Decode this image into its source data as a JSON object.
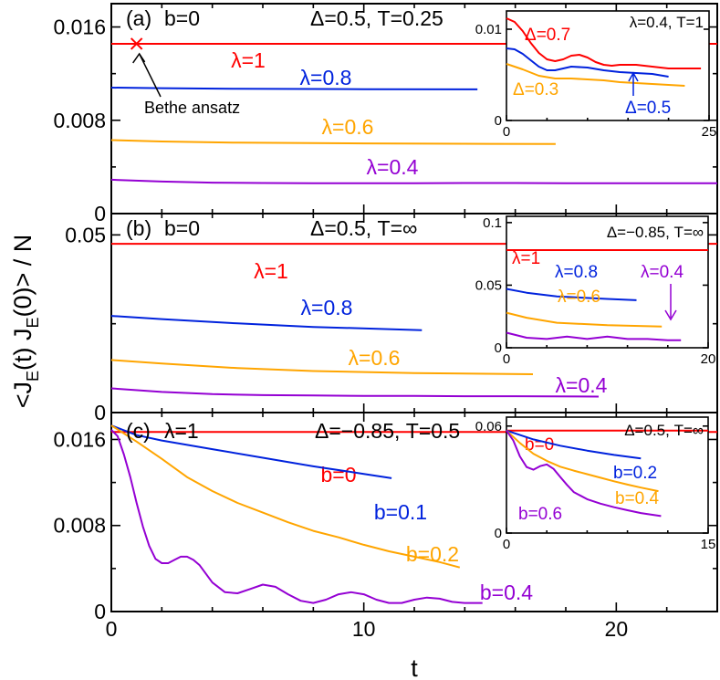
{
  "chart_data": {
    "type": "line",
    "xlabel": "t",
    "ylabel": "<J_E(t) J_E(0)> / N",
    "ylabel_parts": [
      "<J",
      "E",
      "(t) J",
      "E",
      "(0)> / N"
    ],
    "xlim": [
      0,
      24
    ],
    "xticks": [
      0,
      10,
      20
    ],
    "colors": {
      "red": "#ff0000",
      "blue": "#0022dd",
      "orange": "#ffa500",
      "purple": "#9400d3",
      "black": "#000000"
    },
    "panels": [
      {
        "id": "a",
        "tag": "(a)",
        "param": "b=0",
        "title": "Δ=0.5, T=0.25",
        "ylim": [
          0,
          0.018
        ],
        "yticks": [
          0,
          0.008,
          0.016
        ],
        "ytick_labels": [
          "0",
          "0.008",
          "0.016"
        ],
        "annotation": {
          "text": "Bethe ansatz",
          "marker_x": 1.0,
          "marker_y": 0.01456
        },
        "series": [
          {
            "name": "λ=1",
            "color": "red",
            "x": [
              0,
              24
            ],
            "y": [
              0.01456,
              0.01456
            ]
          },
          {
            "name": "λ=0.8",
            "color": "blue",
            "x": [
              0,
              2,
              5,
              10,
              14.5
            ],
            "y": [
              0.0108,
              0.01075,
              0.0107,
              0.01067,
              0.01065
            ]
          },
          {
            "name": "λ=0.6",
            "color": "orange",
            "x": [
              0,
              2,
              5,
              10,
              15,
              17.6
            ],
            "y": [
              0.0063,
              0.00618,
              0.00608,
              0.00602,
              0.00598,
              0.00597
            ]
          },
          {
            "name": "λ=0.4",
            "color": "purple",
            "x": [
              0,
              2,
              4,
              6,
              8,
              10,
              12,
              14,
              16,
              18,
              20,
              22,
              24
            ],
            "y": [
              0.0029,
              0.00275,
              0.00265,
              0.00262,
              0.0026,
              0.0026,
              0.0026,
              0.00262,
              0.00262,
              0.0026,
              0.0026,
              0.00261,
              0.0026
            ]
          }
        ],
        "inset": {
          "title": "λ=0.4, T=1",
          "xlim": [
            0,
            25
          ],
          "ylim": [
            0,
            0.012
          ],
          "xticks": [
            0,
            25
          ],
          "yticks": [
            0,
            0.01
          ],
          "ytick_labels": [
            "0",
            "0.01"
          ],
          "series": [
            {
              "name": "Δ=0.7",
              "color": "red",
              "x": [
                0,
                1,
                2,
                3,
                4,
                5,
                6,
                7,
                8,
                9,
                10,
                11,
                12,
                13,
                14,
                16,
                18,
                20,
                22,
                24
              ],
              "y": [
                0.0112,
                0.0108,
                0.0098,
                0.0085,
                0.0074,
                0.0067,
                0.0065,
                0.0067,
                0.0071,
                0.0072,
                0.0069,
                0.0064,
                0.0061,
                0.006,
                0.0061,
                0.0061,
                0.0059,
                0.0057,
                0.0057,
                0.0057
              ]
            },
            {
              "name": "Δ=0.5",
              "color": "blue",
              "x": [
                0,
                1,
                2,
                3,
                4,
                5,
                6,
                7,
                8,
                10,
                12,
                14,
                16,
                18,
                20
              ],
              "y": [
                0.0079,
                0.0078,
                0.0073,
                0.0066,
                0.0059,
                0.0055,
                0.0055,
                0.0057,
                0.0059,
                0.0058,
                0.0055,
                0.0053,
                0.0052,
                0.0051,
                0.0048
              ]
            },
            {
              "name": "Δ=0.3",
              "color": "orange",
              "x": [
                0,
                2,
                4,
                6,
                8,
                10,
                12,
                14,
                16,
                18,
                20,
                22
              ],
              "y": [
                0.0062,
                0.0056,
                0.0049,
                0.0046,
                0.0046,
                0.0045,
                0.0044,
                0.0042,
                0.0041,
                0.004,
                0.0039,
                0.0038
              ]
            }
          ]
        }
      },
      {
        "id": "b",
        "tag": "(b)",
        "param": "b=0",
        "title": "Δ=0.5, T=∞",
        "ylim": [
          0,
          0.056
        ],
        "yticks": [
          0,
          0.05
        ],
        "ytick_labels": [
          "0",
          "0.05"
        ],
        "series": [
          {
            "name": "λ=1",
            "color": "red",
            "x": [
              0,
              24
            ],
            "y": [
              0.0475,
              0.0475
            ]
          },
          {
            "name": "λ=0.8",
            "color": "blue",
            "x": [
              0,
              2,
              5,
              8,
              12.3
            ],
            "y": [
              0.0272,
              0.0263,
              0.0251,
              0.0241,
              0.0232
            ]
          },
          {
            "name": "λ=0.6",
            "color": "orange",
            "x": [
              0,
              2,
              5,
              8,
              12,
              16.7
            ],
            "y": [
              0.0148,
              0.0138,
              0.0125,
              0.0117,
              0.0111,
              0.0108
            ]
          },
          {
            "name": "λ=0.4",
            "color": "purple",
            "x": [
              0,
              2,
              4,
              6,
              8,
              10,
              12,
              14,
              16,
              19.3
            ],
            "y": [
              0.0068,
              0.0058,
              0.0052,
              0.0049,
              0.0048,
              0.0047,
              0.0047,
              0.0046,
              0.0046,
              0.0045
            ]
          }
        ],
        "inset": {
          "title": "Δ=−0.85, T=∞",
          "xlim": [
            0,
            20
          ],
          "ylim": [
            0,
            0.105
          ],
          "xticks": [
            0,
            20
          ],
          "yticks": [
            0,
            0.05,
            0.1
          ],
          "ytick_labels": [
            "0",
            "0.05",
            "0.1"
          ],
          "series": [
            {
              "name": "λ=1",
              "color": "red",
              "x": [
                0,
                20
              ],
              "y": [
                0.078,
                0.078
              ]
            },
            {
              "name": "λ=0.8",
              "color": "blue",
              "x": [
                0,
                2,
                5,
                10,
                12.9
              ],
              "y": [
                0.047,
                0.044,
                0.041,
                0.039,
                0.038
              ]
            },
            {
              "name": "λ=0.6",
              "color": "orange",
              "x": [
                0,
                2,
                5,
                10,
                15.4
              ],
              "y": [
                0.028,
                0.024,
                0.02,
                0.018,
                0.017
              ]
            },
            {
              "name": "λ=0.4",
              "color": "purple",
              "x": [
                0,
                2,
                4,
                6,
                8,
                10,
                12,
                14,
                16,
                17.3
              ],
              "y": [
                0.012,
                0.008,
                0.007,
                0.009,
                0.007,
                0.009,
                0.007,
                0.007,
                0.006,
                0.006
              ]
            }
          ]
        }
      },
      {
        "id": "c",
        "tag": "(c)",
        "param": "λ=1",
        "title": "Δ=−0.85, T=0.5",
        "ylim": [
          0,
          0.0185
        ],
        "yticks": [
          0,
          0.008,
          0.016
        ],
        "ytick_labels": [
          "0",
          "0.008",
          "0.016"
        ],
        "series": [
          {
            "name": "b=0",
            "color": "red",
            "x": [
              0,
              24
            ],
            "y": [
              0.0167,
              0.0167
            ]
          },
          {
            "name": "b=0.1",
            "color": "blue",
            "x": [
              0,
              1,
              2,
              3,
              4,
              6,
              8,
              10,
              11.1
            ],
            "y": [
              0.0173,
              0.0164,
              0.0159,
              0.0155,
              0.0151,
              0.0143,
              0.0135,
              0.0128,
              0.0124
            ]
          },
          {
            "name": "b=0.2",
            "color": "orange",
            "x": [
              0,
              1,
              2,
              3,
              4,
              5,
              6,
              7,
              8,
              9,
              10,
              11,
              12,
              13,
              13.8
            ],
            "y": [
              0.0173,
              0.0158,
              0.0142,
              0.0125,
              0.0112,
              0.0101,
              0.0092,
              0.0083,
              0.0075,
              0.0069,
              0.0062,
              0.0056,
              0.0051,
              0.0046,
              0.0041
            ]
          },
          {
            "name": "b=0.4",
            "color": "purple",
            "x": [
              0,
              0.25,
              0.5,
              0.75,
              1,
              1.25,
              1.5,
              1.75,
              2,
              2.25,
              2.5,
              2.75,
              3,
              3.25,
              3.5,
              3.75,
              4,
              4.5,
              5,
              5.5,
              6,
              6.5,
              7,
              7.5,
              8,
              8.5,
              9,
              9.5,
              10,
              10.5,
              11,
              11.5,
              12,
              12.5,
              13,
              13.5,
              14,
              14.7
            ],
            "y": [
              0.0169,
              0.0163,
              0.0146,
              0.0125,
              0.0101,
              0.0079,
              0.0061,
              0.0049,
              0.0045,
              0.0045,
              0.0048,
              0.0051,
              0.0051,
              0.0048,
              0.0043,
              0.0035,
              0.0027,
              0.0018,
              0.0017,
              0.0021,
              0.0025,
              0.0023,
              0.0016,
              0.001,
              0.0008,
              0.0011,
              0.0016,
              0.0018,
              0.0016,
              0.0011,
              0.0008,
              0.0008,
              0.0011,
              0.0013,
              0.0012,
              0.0009,
              0.0008,
              0.0008
            ]
          }
        ],
        "inset": {
          "title": "Δ=0.5, T=∞",
          "xlim": [
            0,
            15
          ],
          "ylim": [
            0,
            0.065
          ],
          "xticks": [
            0,
            15
          ],
          "yticks": [
            0,
            0.06
          ],
          "ytick_labels": [
            "0",
            "0.06"
          ],
          "series": [
            {
              "name": "b=0",
              "color": "red",
              "x": [
                0,
                15
              ],
              "y": [
                0.0575,
                0.0575
              ]
            },
            {
              "name": "b=0.2",
              "color": "blue",
              "x": [
                0,
                2,
                4,
                6,
                8,
                10
              ],
              "y": [
                0.0575,
                0.0525,
                0.049,
                0.0462,
                0.0438,
                0.0418
              ]
            },
            {
              "name": "b=0.4",
              "color": "orange",
              "x": [
                0,
                1,
                2,
                3,
                4,
                5,
                6,
                7,
                8,
                9,
                10,
                11.3
              ],
              "y": [
                0.0575,
                0.0505,
                0.0445,
                0.0405,
                0.0372,
                0.035,
                0.033,
                0.031,
                0.029,
                0.0272,
                0.0255,
                0.0235
              ]
            },
            {
              "name": "b=0.6",
              "color": "purple",
              "x": [
                0,
                0.5,
                1,
                1.5,
                2,
                2.5,
                3,
                3.5,
                4,
                4.5,
                5,
                6,
                7,
                8,
                9,
                10,
                11.5
              ],
              "y": [
                0.0575,
                0.052,
                0.043,
                0.037,
                0.0355,
                0.0375,
                0.0385,
                0.036,
                0.0315,
                0.027,
                0.023,
                0.019,
                0.0165,
                0.0145,
                0.0128,
                0.0112,
                0.0095
              ]
            }
          ]
        }
      }
    ]
  }
}
